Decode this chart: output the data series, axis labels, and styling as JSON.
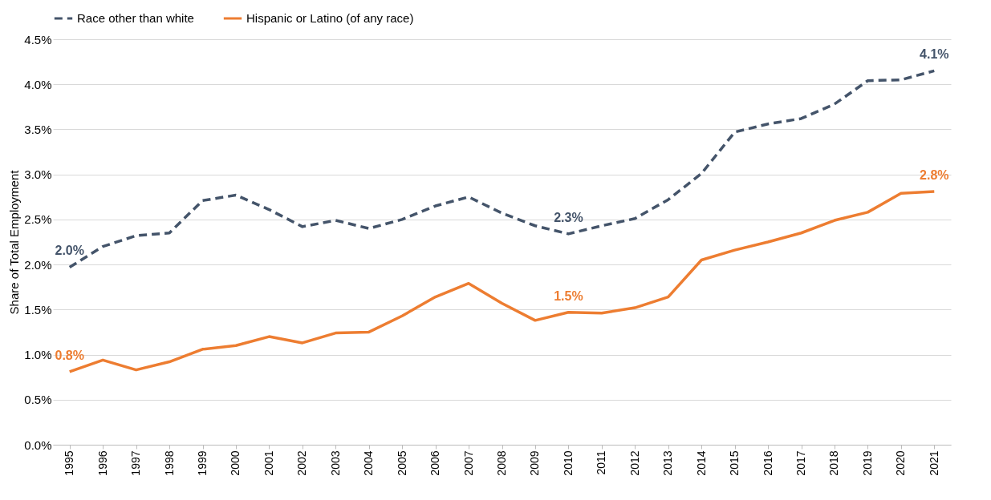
{
  "chart_data": {
    "type": "line",
    "ylabel": "Share of Total Employment",
    "categories": [
      "1995",
      "1996",
      "1997",
      "1998",
      "1999",
      "2000",
      "2001",
      "2002",
      "2003",
      "2004",
      "2005",
      "2006",
      "2007",
      "2008",
      "2009",
      "2010",
      "2011",
      "2012",
      "2013",
      "2014",
      "2015",
      "2016",
      "2017",
      "2018",
      "2019",
      "2020",
      "2021"
    ],
    "series": [
      {
        "name": "Race other than white",
        "color": "#44546a",
        "line_style": "dashed",
        "values": [
          1.97,
          2.2,
          2.32,
          2.35,
          2.71,
          2.77,
          2.61,
          2.42,
          2.49,
          2.4,
          2.5,
          2.65,
          2.75,
          2.57,
          2.43,
          2.34,
          2.43,
          2.51,
          2.72,
          3.01,
          3.47,
          3.56,
          3.62,
          3.78,
          4.04,
          4.05,
          4.15
        ],
        "value_labels": [
          "2.0%",
          null,
          null,
          null,
          null,
          null,
          null,
          null,
          null,
          null,
          null,
          null,
          null,
          null,
          null,
          "2.3%",
          null,
          null,
          null,
          null,
          null,
          null,
          null,
          null,
          null,
          null,
          "4.1%"
        ]
      },
      {
        "name": "Hispanic or Latino (of any race)",
        "color": "#ed7d31",
        "line_style": "solid",
        "values": [
          0.81,
          0.94,
          0.83,
          0.92,
          1.06,
          1.1,
          1.2,
          1.13,
          1.24,
          1.25,
          1.43,
          1.64,
          1.79,
          1.57,
          1.38,
          1.47,
          1.46,
          1.52,
          1.64,
          2.05,
          2.16,
          2.25,
          2.35,
          2.49,
          2.58,
          2.79,
          2.81
        ],
        "value_labels": [
          "0.8%",
          null,
          null,
          null,
          null,
          null,
          null,
          null,
          null,
          null,
          null,
          null,
          null,
          null,
          null,
          "1.5%",
          null,
          null,
          null,
          null,
          null,
          null,
          null,
          null,
          null,
          null,
          "2.8%"
        ]
      }
    ],
    "ylim": [
      0,
      4.5
    ],
    "yticks": [
      {
        "value": 0,
        "label": "0.0%"
      },
      {
        "value": 0.5,
        "label": "0.5%"
      },
      {
        "value": 1,
        "label": "1.0%"
      },
      {
        "value": 1.5,
        "label": "1.5%"
      },
      {
        "value": 2,
        "label": "2.0%"
      },
      {
        "value": 2.5,
        "label": "2.5%"
      },
      {
        "value": 3,
        "label": "3.0%"
      },
      {
        "value": 3.5,
        "label": "3.5%"
      },
      {
        "value": 4,
        "label": "4.0%"
      },
      {
        "value": 4.5,
        "label": "4.5%"
      }
    ],
    "grid": "y",
    "legend": "top",
    "marker": "none"
  }
}
